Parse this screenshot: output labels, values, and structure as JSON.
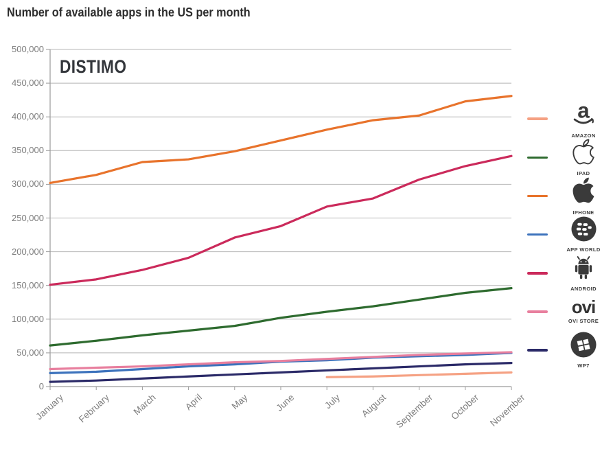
{
  "title": "Number of available apps in the US per month",
  "watermark": "DISTIMO",
  "chart_data": {
    "type": "line",
    "title": "Number of available apps in the US per month",
    "xlabel": "",
    "ylabel": "",
    "categories": [
      "January",
      "February",
      "March",
      "April",
      "May",
      "June",
      "July",
      "August",
      "September",
      "October",
      "November"
    ],
    "ylim": [
      0,
      500000
    ],
    "y_tick_step": 50000,
    "grid": true,
    "legend_position": "right",
    "axis_color": "#9a9a9a",
    "grid_color": "#b5b5b5",
    "label_color": "#7d7d7d",
    "series": [
      {
        "name": "AMAZON",
        "icon": "amazon",
        "color": "#F5A183",
        "values": [
          null,
          null,
          null,
          null,
          null,
          null,
          14000,
          15000,
          17000,
          19000,
          21000
        ]
      },
      {
        "name": "IPAD",
        "icon": "apple-outline",
        "color": "#2E6B2F",
        "values": [
          61000,
          68000,
          76000,
          83000,
          90000,
          102000,
          111000,
          119000,
          129000,
          139000,
          146000
        ]
      },
      {
        "name": "IPHONE",
        "icon": "apple-filled",
        "color": "#E8732C",
        "values": [
          302000,
          314000,
          333000,
          337000,
          349000,
          365000,
          381000,
          395000,
          402000,
          423000,
          431000
        ]
      },
      {
        "name": "APP WORLD",
        "icon": "blackberry",
        "color": "#3C72BC",
        "values": [
          20000,
          22000,
          26000,
          30000,
          33000,
          37000,
          39000,
          43000,
          45000,
          47000,
          50000
        ]
      },
      {
        "name": "ANDROID",
        "icon": "android-robot",
        "color": "#CB2A5B",
        "values": [
          151000,
          159000,
          173000,
          191000,
          221000,
          238000,
          267000,
          279000,
          307000,
          327000,
          342000
        ]
      },
      {
        "name": "OVI STORE",
        "icon": "ovi-wordmark",
        "color": "#E87F9E",
        "values": [
          26000,
          28000,
          30000,
          33000,
          36000,
          38000,
          41000,
          44000,
          47000,
          49000,
          51000
        ]
      },
      {
        "name": "WP7",
        "icon": "windows-flag",
        "color": "#2B2A68",
        "values": [
          7000,
          9000,
          12000,
          15000,
          18000,
          21000,
          24000,
          27000,
          30000,
          33000,
          35000
        ]
      }
    ]
  }
}
